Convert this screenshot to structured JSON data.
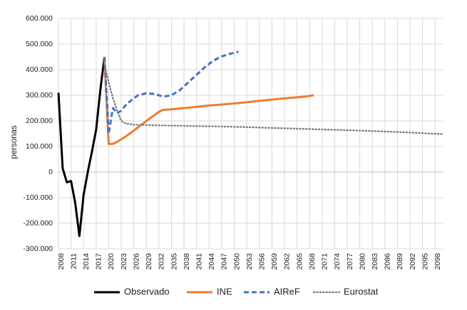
{
  "chart_data": {
    "type": "line",
    "title": "",
    "xlabel": "",
    "ylabel": "personas",
    "ylim": [
      -300000,
      600000
    ],
    "xlim": [
      2008,
      2100
    ],
    "grid": true,
    "legend_position": "bottom",
    "y_ticks": [
      {
        "value": 600000,
        "label": "600.000"
      },
      {
        "value": 500000,
        "label": "500.000"
      },
      {
        "value": 400000,
        "label": "400.000"
      },
      {
        "value": 300000,
        "label": "300.000"
      },
      {
        "value": 200000,
        "label": "200.000"
      },
      {
        "value": 100000,
        "label": "100.000"
      },
      {
        "value": 0,
        "label": "0"
      },
      {
        "value": -100000,
        "label": "-100.000"
      },
      {
        "value": -200000,
        "label": "-200.000"
      },
      {
        "value": -300000,
        "label": "-300.000"
      }
    ],
    "x_ticks": [
      "2008",
      "2011",
      "2014",
      "2017",
      "2020",
      "2023",
      "2026",
      "2029",
      "2032",
      "2035",
      "2038",
      "2041",
      "2044",
      "2047",
      "2050",
      "2053",
      "2056",
      "2059",
      "2062",
      "2065",
      "2068",
      "2071",
      "2074",
      "2077",
      "2080",
      "2083",
      "2086",
      "2089",
      "2092",
      "2095",
      "2098"
    ],
    "series": [
      {
        "name": "Observado",
        "color": "#000000",
        "style": "solid",
        "x": [
          2008,
          2009,
          2010,
          2011,
          2012,
          2013,
          2014,
          2015,
          2016,
          2017,
          2018,
          2019
        ],
        "y": [
          310000,
          15000,
          -40000,
          -35000,
          -120000,
          -250000,
          -90000,
          0,
          80000,
          165000,
          320000,
          450000
        ]
      },
      {
        "name": "INE",
        "color": "#ed7d31",
        "style": "solid",
        "x": [
          2019,
          2020,
          2021,
          2022,
          2024,
          2026,
          2028,
          2030,
          2032,
          2033,
          2035,
          2038,
          2041,
          2044,
          2047,
          2050,
          2053,
          2056,
          2059,
          2062,
          2065,
          2067,
          2069
        ],
        "y": [
          440000,
          110000,
          110000,
          118000,
          138000,
          162000,
          187000,
          212000,
          235000,
          243000,
          245000,
          250000,
          255000,
          260000,
          264000,
          268000,
          273000,
          278000,
          283000,
          288000,
          292000,
          295000,
          300000
        ]
      },
      {
        "name": "AIReF",
        "color": "#4472c4",
        "style": "dashed",
        "x": [
          2019,
          2020,
          2021,
          2022,
          2023,
          2024,
          2025,
          2026,
          2027,
          2029,
          2031,
          2033,
          2035,
          2037,
          2039,
          2041,
          2043,
          2045,
          2047,
          2049,
          2051
        ],
        "y": [
          450000,
          150000,
          250000,
          230000,
          240000,
          260000,
          275000,
          288000,
          300000,
          308000,
          305000,
          295000,
          300000,
          320000,
          350000,
          380000,
          410000,
          435000,
          452000,
          462000,
          470000
        ]
      },
      {
        "name": "Eurostat",
        "color": "#808080",
        "style": "dotted",
        "x": [
          2019,
          2020,
          2021,
          2022,
          2023,
          2024,
          2026,
          2030,
          2040,
          2050,
          2060,
          2070,
          2080,
          2090,
          2100
        ],
        "y": [
          420000,
          350000,
          290000,
          240000,
          200000,
          190000,
          185000,
          183000,
          180000,
          177000,
          172000,
          167000,
          162000,
          156000,
          148000
        ]
      }
    ]
  }
}
